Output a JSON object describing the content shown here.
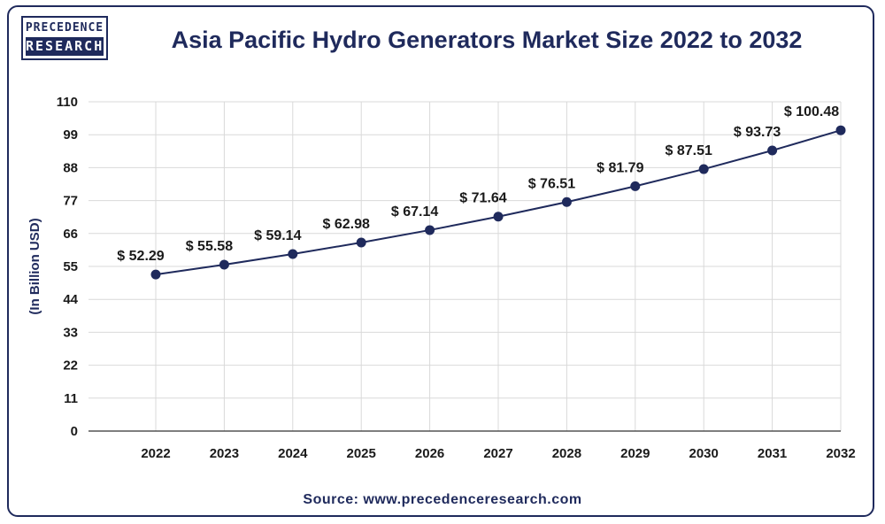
{
  "header": {
    "logo_line1": "PRECEDENCE",
    "logo_line2": "RESEARCH",
    "title": "Asia Pacific Hydro Generators Market Size 2022 to 2032"
  },
  "footer": {
    "source": "Source: www.precedenceresearch.com"
  },
  "colors": {
    "brand": "#1f2a5c",
    "line": "#1f2a5c",
    "grid": "#d9d9d9"
  },
  "chart_data": {
    "type": "line",
    "title": "Asia Pacific Hydro Generators Market Size 2022 to 2032",
    "xlabel": "",
    "ylabel": "(In Billion USD)",
    "categories": [
      "2022",
      "2023",
      "2024",
      "2025",
      "2026",
      "2027",
      "2028",
      "2029",
      "2030",
      "2031",
      "2032"
    ],
    "series": [
      {
        "values": [
          52.29,
          55.58,
          59.14,
          62.98,
          67.14,
          71.64,
          76.51,
          81.79,
          87.51,
          93.73,
          100.48
        ],
        "labels": [
          "$ 52.29",
          "$ 55.58",
          "$ 59.14",
          "$ 62.98",
          "$ 67.14",
          "$ 71.64",
          "$ 76.51",
          "$ 81.79",
          "$ 87.51",
          "$ 93.73",
          "$ 100.48"
        ]
      }
    ],
    "ylim": [
      0,
      110
    ],
    "yticks": [
      "0",
      "11",
      "22",
      "33",
      "44",
      "55",
      "66",
      "77",
      "88",
      "99",
      "110"
    ],
    "grid": true,
    "legend": "none"
  }
}
